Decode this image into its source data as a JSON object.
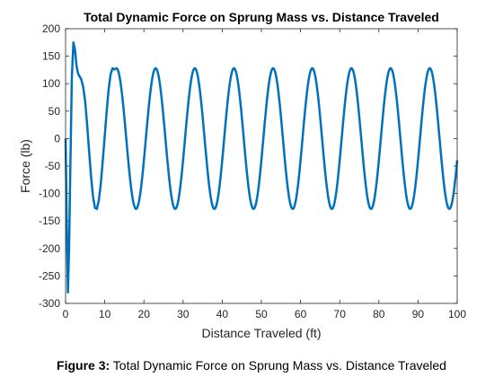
{
  "chart_data": {
    "type": "line",
    "title": "Total Dynamic Force on Sprung Mass vs. Distance Traveled",
    "xlabel": "Distance Traveled (ft)",
    "ylabel": "Force (lb)",
    "xlim": [
      0,
      100
    ],
    "ylim": [
      -300,
      200
    ],
    "xticks": [
      0,
      10,
      20,
      30,
      40,
      50,
      60,
      70,
      80,
      90,
      100
    ],
    "yticks": [
      200,
      150,
      100,
      50,
      0,
      -50,
      -100,
      -150,
      -200,
      -250,
      -300
    ],
    "grid": false,
    "legend": "none",
    "series_color": "#0072BD",
    "series": [
      {
        "x": [
          0,
          0.3,
          0.6,
          0.9,
          1.2,
          1.6,
          2.0,
          2.4,
          2.8,
          3.2,
          3.6,
          4.0,
          4.5,
          5.0,
          5.5,
          6.0,
          6.5,
          7.0,
          7.5,
          8.0,
          8.5,
          9.0,
          9.5,
          10.0,
          10.5,
          11.0,
          11.5,
          12.0,
          12.5,
          13.0
        ],
        "y": [
          0,
          -150,
          -280,
          -200,
          -60,
          110,
          175,
          162,
          132,
          118,
          113,
          108,
          94,
          68,
          26,
          -22,
          -68,
          -105,
          -126,
          -128,
          -112,
          -82,
          -40,
          5,
          50,
          90,
          117,
          128,
          126,
          128
        ]
      }
    ],
    "steady_state": {
      "amplitude": 128,
      "period": 10,
      "first_peak_x": 13,
      "x_range": [
        13,
        100
      ]
    }
  },
  "caption": {
    "label": "Figure 3:",
    "text": "Total Dynamic Force on Sprung Mass vs. Distance Traveled"
  }
}
